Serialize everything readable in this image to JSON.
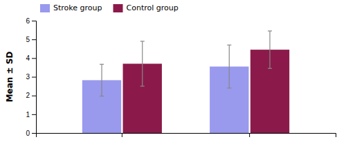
{
  "chart_data": {
    "type": "bar",
    "categories": [
      null,
      null
    ],
    "series": [
      {
        "name": "Stroke group",
        "color": "#9999ee",
        "values": [
          2.82,
          3.55
        ],
        "errors": [
          0.85,
          1.15
        ]
      },
      {
        "name": "Control group",
        "color": "#8B1A4A",
        "values": [
          3.7,
          4.45
        ],
        "errors": [
          1.2,
          1.0
        ]
      }
    ],
    "ylabel": "Mean ± SD",
    "ylim": [
      0,
      6
    ],
    "yticks": [
      0,
      1,
      2,
      3,
      4,
      5,
      6
    ],
    "legend": "upper left",
    "grid": false,
    "tick_labels": "y"
  }
}
